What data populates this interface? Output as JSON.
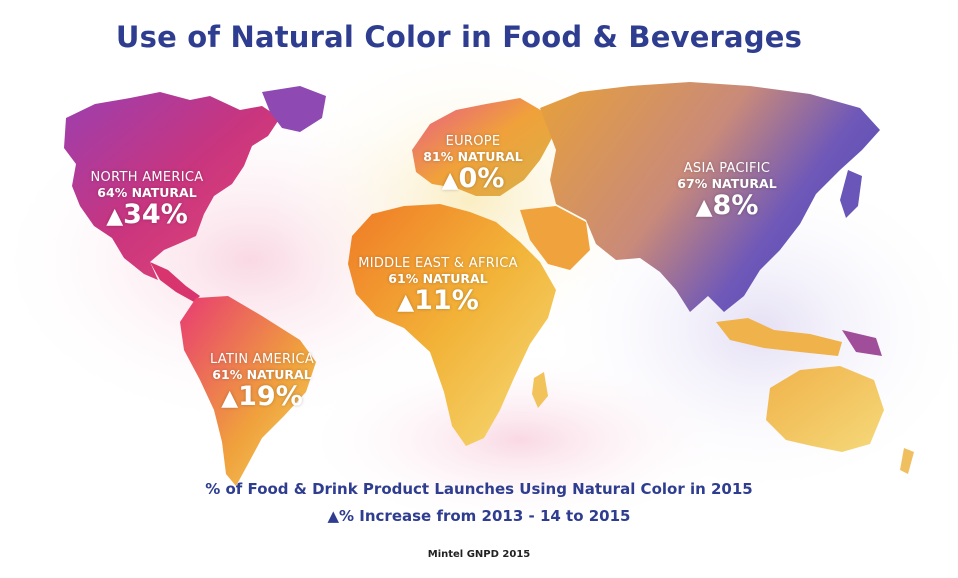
{
  "title": "Use of Natural Color in Food & Beverages",
  "regions": {
    "north_america": {
      "name": "NORTH AMERICA",
      "natural": "64% NATURAL",
      "increase": "34%",
      "color": "#c7367f"
    },
    "europe": {
      "name": "EUROPE",
      "natural": "81% NATURAL",
      "increase": "0%",
      "color": "#f0a13a"
    },
    "asia_pacific": {
      "name": "ASIA PACIFIC",
      "natural": "67% NATURAL",
      "increase": "8%",
      "color": "#7a56b8"
    },
    "middle_east_africa": {
      "name": "MIDDLE EAST & AFRICA",
      "natural": "61% NATURAL",
      "increase": "11%",
      "color": "#f08c2a"
    },
    "latin_america": {
      "name": "LATIN AMERICA",
      "natural": "61% NATURAL",
      "increase": "19%",
      "color": "#e8417a"
    }
  },
  "legend": {
    "line1": "% of Food & Drink Product Launches Using Natural Color in 2015",
    "line2": "% Increase from 2013 - 14 to 2015",
    "triangle_icon": "delta-triangle-plus"
  },
  "source": "Mintel GNPD 2015",
  "colors": {
    "title": "#2e3d8f",
    "label": "#ffffff"
  }
}
